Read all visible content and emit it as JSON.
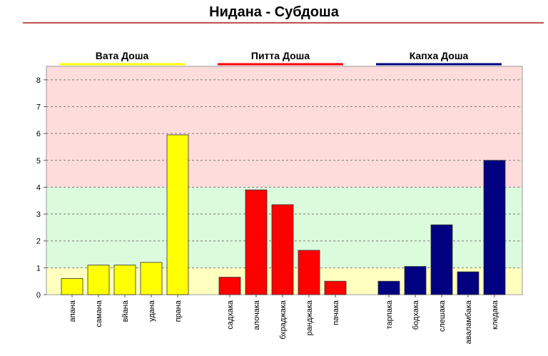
{
  "page": {
    "title": "Нидана - Субдоша"
  },
  "chart_data": {
    "type": "bar",
    "title": "Нидана - Субдоша",
    "ylim": [
      0,
      8.5
    ],
    "y_ticks": [
      0,
      1,
      2,
      3,
      4,
      5,
      6,
      7,
      8
    ],
    "grid": true,
    "bands": [
      {
        "from": 0,
        "to": 1,
        "color": "#ffffc0"
      },
      {
        "from": 1,
        "to": 4,
        "color": "#dcfadc"
      },
      {
        "from": 4,
        "to": 8.5,
        "color": "#ffdcdc"
      }
    ],
    "series": [
      {
        "name": "Вата Доша",
        "color": "#ffff00",
        "legend_line": "#ffff00",
        "categories": [
          "апана",
          "самана",
          "вйана",
          "удана",
          "прана"
        ],
        "values": [
          0.6,
          1.1,
          1.1,
          1.2,
          5.95
        ]
      },
      {
        "name": "Питта Доша",
        "color": "#ff0000",
        "legend_line": "#ff0000",
        "categories": [
          "садхака",
          "алочака",
          "бхраджака",
          "ранджака",
          "пачака"
        ],
        "values": [
          0.65,
          3.9,
          3.35,
          1.65,
          0.5
        ]
      },
      {
        "name": "Капха Доша",
        "color": "#000080",
        "legend_line": "#000080",
        "categories": [
          "тарпака",
          "бодхака",
          "слешака",
          "аваламбака",
          "кледака"
        ],
        "values": [
          0.5,
          1.05,
          2.6,
          0.85,
          5.0
        ]
      }
    ]
  }
}
